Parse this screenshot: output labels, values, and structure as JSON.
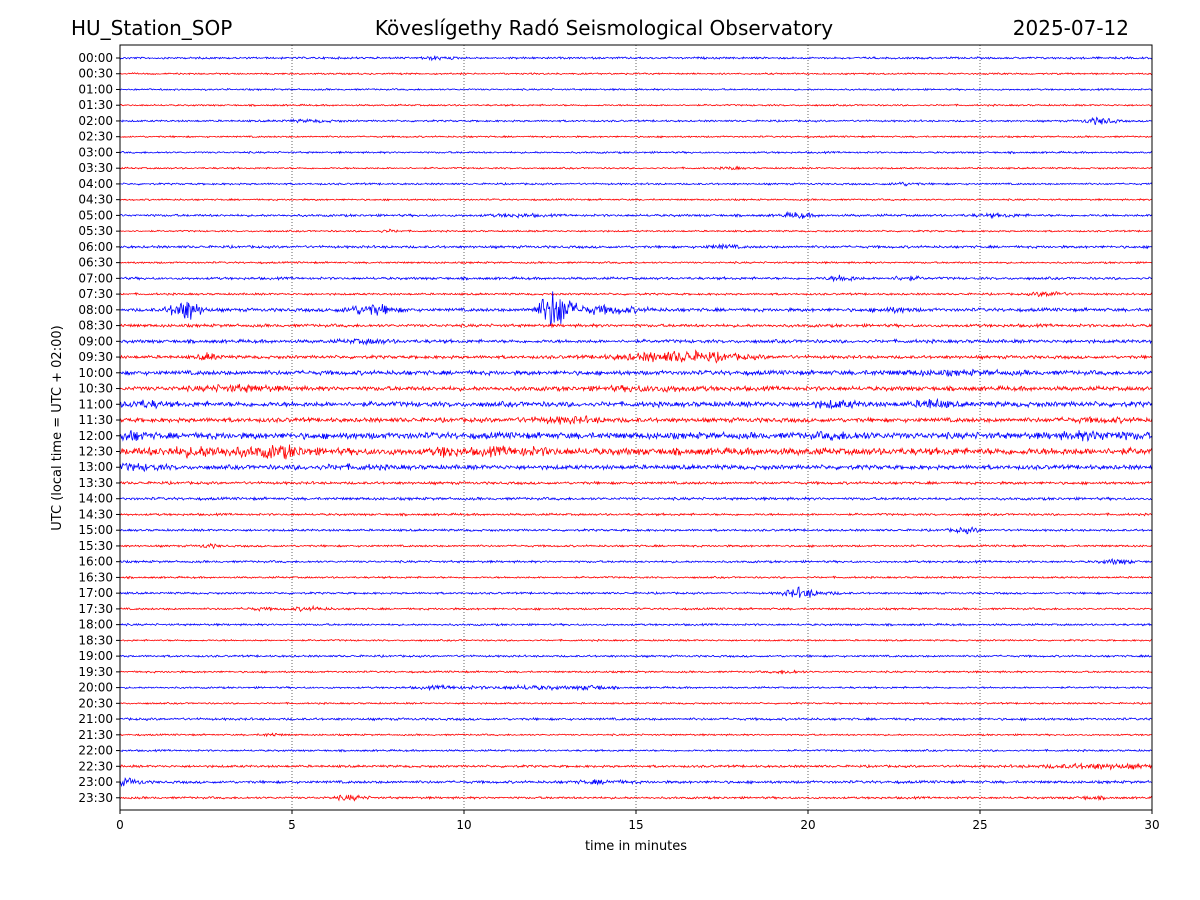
{
  "header": {
    "station": "HU_Station_SOP",
    "observatory": "Köveslígethy Radó Seismological Observatory",
    "date": "2025-07-12"
  },
  "chart_data": {
    "type": "line",
    "title": "Köveslígethy Radó Seismological Observatory",
    "xlabel": "time in minutes",
    "ylabel": "UTC (local time = UTC + 02:00)",
    "xlim": [
      0,
      30
    ],
    "x_ticks": [
      "0",
      "5",
      "10",
      "15",
      "20",
      "25",
      "30"
    ],
    "grid": "vertical dotted lines at 5-minute intervals",
    "colors": {
      "even_rows": "#0000ff",
      "odd_rows": "#ff0000"
    },
    "rows": [
      {
        "label": "00:00",
        "amp": 1.2,
        "bursts": [
          [
            9.2,
            0.3,
            2.5
          ]
        ]
      },
      {
        "label": "00:30",
        "amp": 1.0,
        "bursts": []
      },
      {
        "label": "01:00",
        "amp": 1.0,
        "bursts": []
      },
      {
        "label": "01:30",
        "amp": 1.0,
        "bursts": []
      },
      {
        "label": "02:00",
        "amp": 1.1,
        "bursts": [
          [
            28.5,
            0.3,
            4.5
          ],
          [
            5.5,
            0.6,
            2.0
          ]
        ]
      },
      {
        "label": "02:30",
        "amp": 1.0,
        "bursts": []
      },
      {
        "label": "03:00",
        "amp": 1.1,
        "bursts": []
      },
      {
        "label": "03:30",
        "amp": 1.0,
        "bursts": [
          [
            17.8,
            0.2,
            2.5
          ]
        ]
      },
      {
        "label": "04:00",
        "amp": 1.1,
        "bursts": [
          [
            22.8,
            0.3,
            2.5
          ]
        ]
      },
      {
        "label": "04:30",
        "amp": 1.0,
        "bursts": []
      },
      {
        "label": "05:00",
        "amp": 1.4,
        "bursts": [
          [
            19.7,
            0.3,
            3.0
          ],
          [
            11.5,
            0.5,
            2.0
          ],
          [
            25.5,
            0.5,
            2.0
          ]
        ]
      },
      {
        "label": "05:30",
        "amp": 1.0,
        "bursts": [
          [
            7.8,
            0.2,
            2.5
          ]
        ]
      },
      {
        "label": "06:00",
        "amp": 1.5,
        "bursts": [
          [
            17.5,
            0.3,
            2.5
          ]
        ]
      },
      {
        "label": "06:30",
        "amp": 1.1,
        "bursts": []
      },
      {
        "label": "07:00",
        "amp": 1.5,
        "bursts": [
          [
            21.0,
            0.3,
            3.0
          ],
          [
            22.8,
            0.3,
            2.5
          ]
        ]
      },
      {
        "label": "07:30",
        "amp": 1.2,
        "bursts": [
          [
            27.0,
            0.3,
            3.5
          ]
        ]
      },
      {
        "label": "08:00",
        "amp": 2.0,
        "bursts": [
          [
            1.9,
            0.3,
            7.0
          ],
          [
            7.3,
            0.5,
            4.0
          ],
          [
            12.6,
            0.3,
            9.0
          ],
          [
            14.0,
            0.8,
            3.0
          ],
          [
            22.5,
            0.4,
            2.0
          ]
        ]
      },
      {
        "label": "08:30",
        "amp": 1.8,
        "bursts": []
      },
      {
        "label": "09:00",
        "amp": 2.0,
        "bursts": [
          [
            7.2,
            0.5,
            2.0
          ]
        ]
      },
      {
        "label": "09:30",
        "amp": 1.9,
        "bursts": [
          [
            16.3,
            1.2,
            4.0
          ],
          [
            2.6,
            0.2,
            3.0
          ]
        ]
      },
      {
        "label": "10:00",
        "amp": 2.6,
        "bursts": [
          [
            24.0,
            1.5,
            1.5
          ]
        ]
      },
      {
        "label": "10:30",
        "amp": 2.6,
        "bursts": [
          [
            3.5,
            0.8,
            2.0
          ],
          [
            15.5,
            1.0,
            1.8
          ]
        ]
      },
      {
        "label": "11:00",
        "amp": 3.0,
        "bursts": [
          [
            20.8,
            0.5,
            2.0
          ],
          [
            23.6,
            0.3,
            2.5
          ],
          [
            0.7,
            0.4,
            2.0
          ]
        ]
      },
      {
        "label": "11:30",
        "amp": 2.6,
        "bursts": [
          [
            13.0,
            0.8,
            2.0
          ],
          [
            28.5,
            0.8,
            1.5
          ]
        ]
      },
      {
        "label": "12:00",
        "amp": 3.8,
        "bursts": [
          [
            0.3,
            0.3,
            2.0
          ],
          [
            21.0,
            0.6,
            1.5
          ],
          [
            28.5,
            0.8,
            1.8
          ]
        ]
      },
      {
        "label": "12:30",
        "amp": 4.2,
        "bursts": [
          [
            2.5,
            1.0,
            1.8
          ],
          [
            4.7,
            0.5,
            2.0
          ],
          [
            11.5,
            0.8,
            1.6
          ],
          [
            9.5,
            0.2,
            2.0
          ]
        ]
      },
      {
        "label": "13:00",
        "amp": 2.6,
        "bursts": [
          [
            0.5,
            0.6,
            2.0
          ],
          [
            6.5,
            1.0,
            1.5
          ]
        ]
      },
      {
        "label": "13:30",
        "amp": 1.6,
        "bursts": []
      },
      {
        "label": "14:00",
        "amp": 1.6,
        "bursts": []
      },
      {
        "label": "14:30",
        "amp": 1.3,
        "bursts": []
      },
      {
        "label": "15:00",
        "amp": 1.3,
        "bursts": [
          [
            24.6,
            0.3,
            3.0
          ]
        ]
      },
      {
        "label": "15:30",
        "amp": 1.2,
        "bursts": [
          [
            2.6,
            0.2,
            2.5
          ]
        ]
      },
      {
        "label": "16:00",
        "amp": 1.3,
        "bursts": [
          [
            29.0,
            0.3,
            3.0
          ]
        ]
      },
      {
        "label": "16:30",
        "amp": 1.1,
        "bursts": []
      },
      {
        "label": "17:00",
        "amp": 1.2,
        "bursts": [
          [
            19.7,
            0.3,
            5.0
          ],
          [
            20.5,
            0.4,
            2.0
          ]
        ]
      },
      {
        "label": "17:30",
        "amp": 1.2,
        "bursts": [
          [
            5.5,
            0.4,
            2.5
          ],
          [
            4.0,
            0.3,
            2.0
          ]
        ]
      },
      {
        "label": "18:00",
        "amp": 1.2,
        "bursts": []
      },
      {
        "label": "18:30",
        "amp": 1.0,
        "bursts": []
      },
      {
        "label": "19:00",
        "amp": 1.2,
        "bursts": []
      },
      {
        "label": "19:30",
        "amp": 1.1,
        "bursts": [
          [
            19.4,
            0.3,
            2.5
          ]
        ]
      },
      {
        "label": "20:00",
        "amp": 1.1,
        "bursts": [
          [
            9.5,
            0.6,
            2.5
          ],
          [
            12.0,
            0.8,
            2.8
          ],
          [
            13.8,
            0.3,
            3.0
          ]
        ]
      },
      {
        "label": "20:30",
        "amp": 1.0,
        "bursts": []
      },
      {
        "label": "21:00",
        "amp": 1.4,
        "bursts": []
      },
      {
        "label": "21:30",
        "amp": 1.0,
        "bursts": [
          [
            4.4,
            0.2,
            2.5
          ]
        ]
      },
      {
        "label": "22:00",
        "amp": 1.1,
        "bursts": []
      },
      {
        "label": "22:30",
        "amp": 1.4,
        "bursts": [
          [
            28.5,
            1.2,
            2.8
          ]
        ]
      },
      {
        "label": "23:00",
        "amp": 1.6,
        "bursts": [
          [
            0.2,
            0.3,
            3.0
          ],
          [
            14.0,
            0.5,
            2.0
          ]
        ]
      },
      {
        "label": "23:30",
        "amp": 1.3,
        "bursts": [
          [
            6.7,
            0.3,
            3.0
          ],
          [
            28.2,
            0.3,
            2.0
          ]
        ]
      }
    ]
  }
}
